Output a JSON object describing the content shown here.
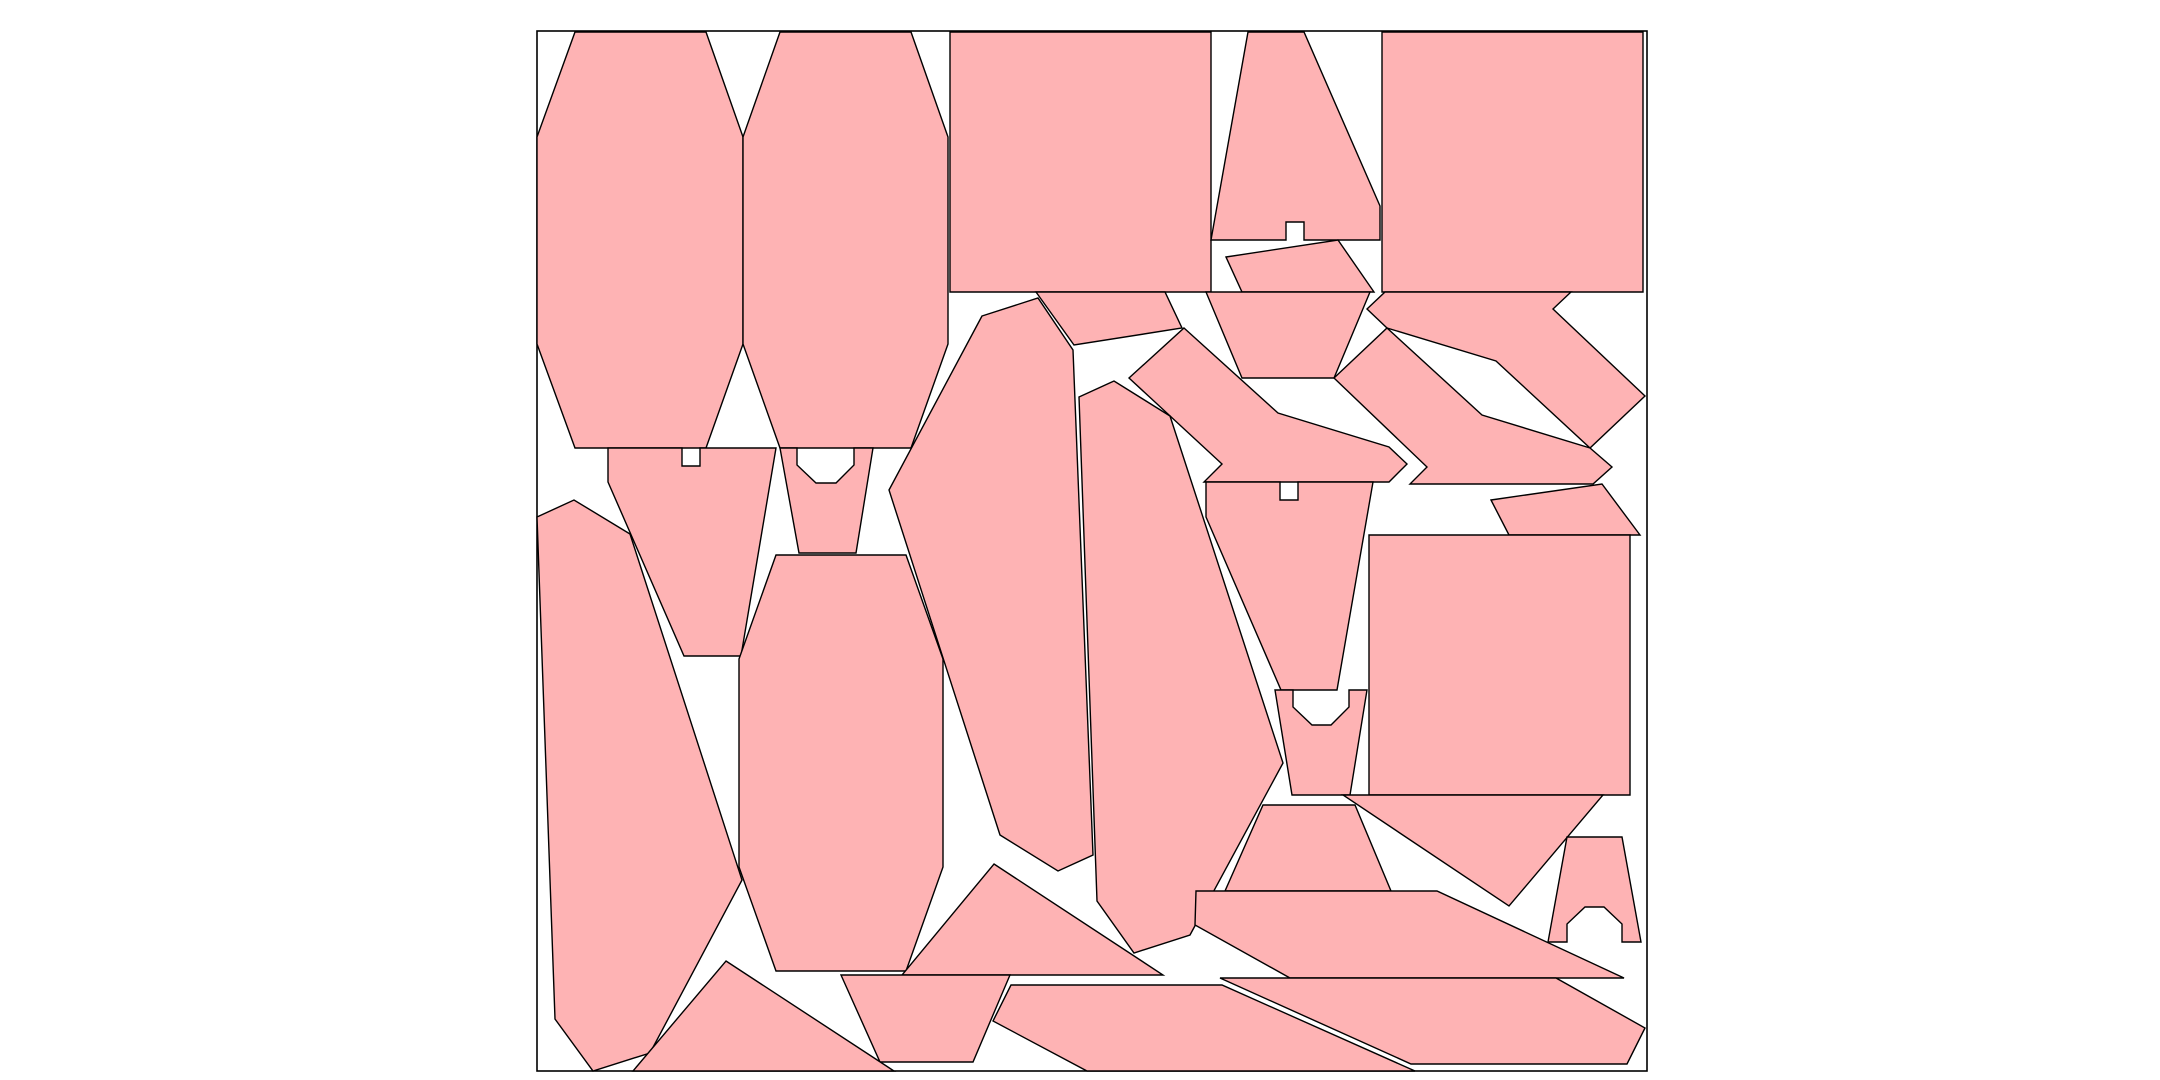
{
  "colors": {
    "fill": "#feb3b4",
    "stroke": "#000000",
    "background": "#ffffff"
  },
  "pieces": [
    {
      "name": "piece-hexagon-top-left"
    },
    {
      "name": "piece-hexagon-top-second"
    },
    {
      "name": "piece-rectangle-top-middle"
    },
    {
      "name": "piece-triangle-top-notched"
    },
    {
      "name": "piece-rectangle-top-right"
    },
    {
      "name": "piece-quad-small-upper"
    },
    {
      "name": "piece-trapezoid-upper-center"
    },
    {
      "name": "piece-quad-upper-gap"
    },
    {
      "name": "piece-parallelogram-upper-right"
    },
    {
      "name": "piece-arrow-upper-center"
    },
    {
      "name": "piece-arrow-upper-right"
    },
    {
      "name": "piece-quad-right-middle"
    },
    {
      "name": "piece-rectangle-right-middle"
    },
    {
      "name": "piece-trapezoid-notched-left"
    },
    {
      "name": "piece-cup-left"
    },
    {
      "name": "piece-trapezoid-notched-center"
    },
    {
      "name": "piece-cup-center"
    },
    {
      "name": "piece-long-polygon-left"
    },
    {
      "name": "piece-hexagon-lower-left"
    },
    {
      "name": "piece-long-polygon-center-left"
    },
    {
      "name": "piece-long-polygon-center-right"
    },
    {
      "name": "piece-trapezoid-lower-center"
    },
    {
      "name": "piece-triangle-lower-right"
    },
    {
      "name": "piece-cup-lower-right"
    },
    {
      "name": "piece-parallelogram-lower-right"
    },
    {
      "name": "piece-triangle-lower-center"
    },
    {
      "name": "piece-trapezoid-bottom-center"
    },
    {
      "name": "piece-triangle-bottom-left"
    },
    {
      "name": "piece-parallelogram-bottom-center"
    },
    {
      "name": "piece-parallelogram-bottom-right"
    }
  ]
}
